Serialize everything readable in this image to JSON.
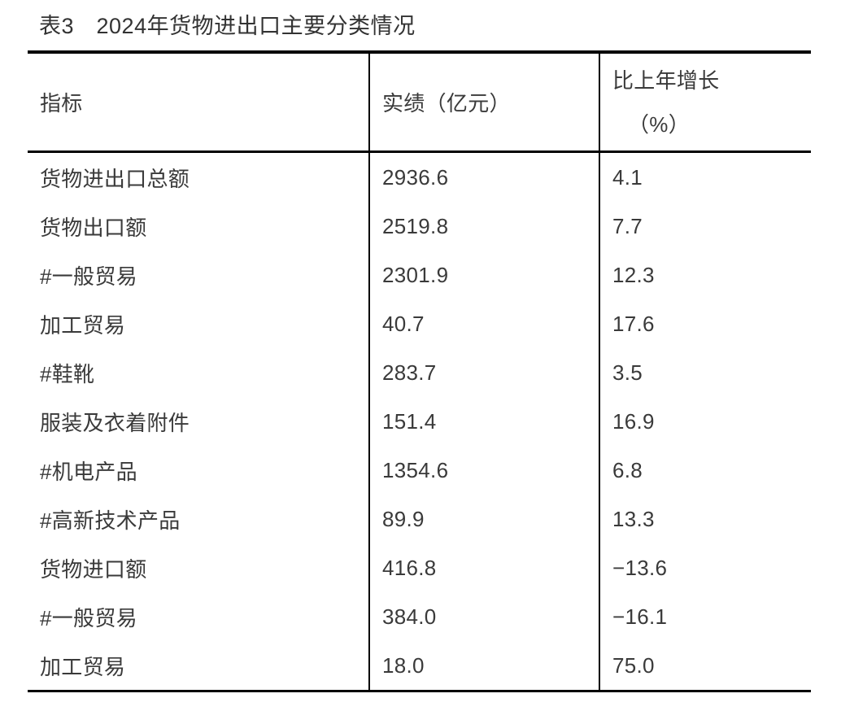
{
  "page": {
    "title": "表3　2024年货物进出口主要分类情况"
  },
  "table": {
    "headers": {
      "indicator": "指标",
      "value": "实绩（亿元）",
      "growth_line1": "比上年增长",
      "growth_line2": "（%）"
    },
    "rows": [
      {
        "indicator": "货物进出口总额",
        "value": "2936.6",
        "growth": "4.1"
      },
      {
        "indicator": "货物出口额",
        "value": "2519.8",
        "growth": "7.7"
      },
      {
        "indicator": "#一般贸易",
        "value": "2301.9",
        "growth": "12.3"
      },
      {
        "indicator": "加工贸易",
        "value": "40.7",
        "growth": "17.6"
      },
      {
        "indicator": "#鞋靴",
        "value": "283.7",
        "growth": "3.5"
      },
      {
        "indicator": "服装及衣着附件",
        "value": "151.4",
        "growth": "16.9"
      },
      {
        "indicator": "#机电产品",
        "value": "1354.6",
        "growth": "6.8"
      },
      {
        "indicator": "#高新技术产品",
        "value": "89.9",
        "growth": "13.3"
      },
      {
        "indicator": "货物进口额",
        "value": "416.8",
        "growth": "−13.6"
      },
      {
        "indicator": "#一般贸易",
        "value": "384.0",
        "growth": "−16.1"
      },
      {
        "indicator": "加工贸易",
        "value": "18.0",
        "growth": "75.0"
      }
    ]
  },
  "chart_data": {
    "type": "table",
    "title": "表3　2024年货物进出口主要分类情况",
    "columns": [
      "指标",
      "实绩（亿元）",
      "比上年增长（%）"
    ],
    "rows": [
      [
        "货物进出口总额",
        2936.6,
        4.1
      ],
      [
        "货物出口额",
        2519.8,
        7.7
      ],
      [
        "#一般贸易",
        2301.9,
        12.3
      ],
      [
        "加工贸易",
        40.7,
        17.6
      ],
      [
        "#鞋靴",
        283.7,
        3.5
      ],
      [
        "服装及衣着附件",
        151.4,
        16.9
      ],
      [
        "#机电产品",
        1354.6,
        6.8
      ],
      [
        "#高新技术产品",
        89.9,
        13.3
      ],
      [
        "货物进口额",
        416.8,
        -13.6
      ],
      [
        "#一般贸易",
        384.0,
        -16.1
      ],
      [
        "加工贸易",
        18.0,
        75.0
      ]
    ]
  }
}
